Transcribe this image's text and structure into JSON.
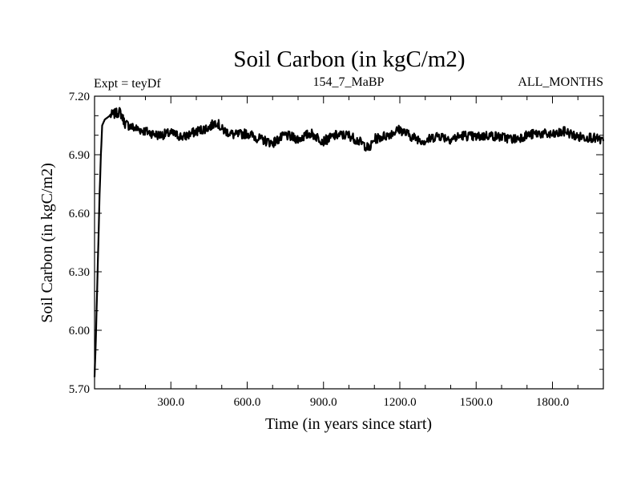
{
  "chart_data": {
    "type": "line",
    "title": "Soil Carbon (in kgC/m2)",
    "subtitle_left": "Expt = teyDf",
    "subtitle_center": "154_7_MaBP",
    "subtitle_right": "ALL_MONTHS",
    "xlabel": "Time (in years since start)",
    "ylabel": "Soil Carbon (in kgC/m2)",
    "xlim": [
      0,
      2000
    ],
    "ylim": [
      5.7,
      7.2
    ],
    "x_ticks": [
      300,
      600,
      900,
      1200,
      1500,
      1800
    ],
    "x_tick_labels": [
      "300.0",
      "600.0",
      "900.0",
      "1200.0",
      "1500.0",
      "1800.0"
    ],
    "y_ticks": [
      5.7,
      6.0,
      6.3,
      6.6,
      6.9,
      7.2
    ],
    "y_tick_labels": [
      "5.70",
      "6.00",
      "6.30",
      "6.60",
      "6.90",
      "7.20"
    ],
    "grid": false,
    "line_color": "#000000",
    "series": [
      {
        "x": [
          0,
          5,
          10,
          15,
          20,
          25,
          30,
          40,
          50,
          60,
          80,
          100,
          120,
          150,
          200,
          250,
          300,
          350,
          400,
          450,
          480,
          500,
          550,
          600,
          650,
          700,
          750,
          800,
          850,
          900,
          950,
          1000,
          1050,
          1080,
          1100,
          1150,
          1200,
          1250,
          1300,
          1350,
          1400,
          1450,
          1500,
          1550,
          1600,
          1650,
          1700,
          1750,
          1800,
          1850,
          1900,
          1950,
          2000
        ],
        "values": [
          5.76,
          5.95,
          6.2,
          6.45,
          6.7,
          6.9,
          7.05,
          7.08,
          7.09,
          7.1,
          7.11,
          7.12,
          7.06,
          7.04,
          7.02,
          7.0,
          7.01,
          6.99,
          7.02,
          7.04,
          7.07,
          7.03,
          7.0,
          7.01,
          6.98,
          6.96,
          7.0,
          6.98,
          7.01,
          6.97,
          7.0,
          7.0,
          6.96,
          6.93,
          6.98,
          7.0,
          7.03,
          6.99,
          6.97,
          7.0,
          6.98,
          7.0,
          6.99,
          7.0,
          6.99,
          6.98,
          7.0,
          7.01,
          7.0,
          7.02,
          6.99,
          6.99,
          6.97
        ]
      }
    ]
  }
}
